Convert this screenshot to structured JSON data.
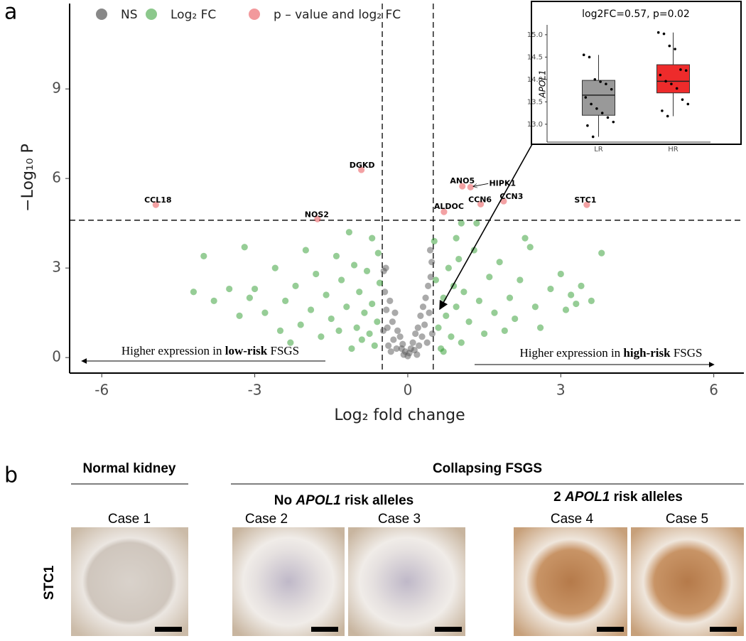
{
  "panel_labels": [
    "a",
    "b"
  ],
  "chart_data": [
    {
      "type": "scatter",
      "xlabel": "Log₂ fold change",
      "ylabel": "−Log₁₀ P",
      "xlim": [
        -6.63,
        6.59
      ],
      "ylim": [
        -0.52,
        11.86
      ],
      "xticks": [
        -6,
        -3,
        0,
        3,
        6
      ],
      "yticks": [
        0,
        3,
        6,
        9
      ],
      "legend": "top-left",
      "thresholds": {
        "x": [
          -0.5,
          0.5
        ],
        "y": 4.6
      },
      "series": [
        {
          "name": "NS",
          "color": "#555555",
          "x": [
            -0.45,
            -0.42,
            -0.4,
            -0.38,
            -0.35,
            -0.3,
            -0.28,
            -0.25,
            -0.22,
            -0.2,
            -0.15,
            -0.12,
            -0.1,
            -0.05,
            0,
            0.03,
            0.06,
            0.1,
            0.13,
            0.15,
            0.2,
            0.22,
            0.25,
            0.28,
            0.3,
            0.33,
            0.35,
            0.38,
            0.4,
            0.42,
            0.45,
            0.47,
            -0.47,
            -0.43,
            0.44,
            -0.33,
            0.18,
            -0.08,
            0.48,
            -0.48
          ],
          "y": [
            2.2,
            1.6,
            1.0,
            0.4,
            1.9,
            1.2,
            0.6,
            1.5,
            0.3,
            0.9,
            0.7,
            0.3,
            0.45,
            0.2,
            0.05,
            0.15,
            0.3,
            0.5,
            0.25,
            0.8,
            1.0,
            0.4,
            1.4,
            0.7,
            1.7,
            1.1,
            2.0,
            0.5,
            2.4,
            1.5,
            2.7,
            3.2,
            2.9,
            3.0,
            3.6,
            0.2,
            0.1,
            0.1,
            0.8,
            0.9
          ]
        },
        {
          "name": "Log₂ FC",
          "color": "#2e9b2e",
          "x": [
            -0.55,
            -0.6,
            -0.65,
            -0.7,
            -0.75,
            -0.8,
            -0.85,
            -0.9,
            -0.95,
            -1.0,
            -1.05,
            -1.1,
            -1.2,
            -1.3,
            -1.35,
            -1.4,
            -1.5,
            -1.6,
            -1.7,
            -1.8,
            -1.9,
            -2.0,
            -2.1,
            -2.2,
            -2.4,
            -2.5,
            -2.6,
            -2.8,
            -3.0,
            -3.1,
            -3.2,
            -3.3,
            -3.5,
            -3.8,
            -4.0,
            -4.2,
            -0.58,
            -1.15,
            -0.7,
            -2.3,
            0.55,
            0.6,
            0.65,
            0.7,
            0.75,
            0.8,
            0.85,
            0.9,
            0.95,
            1.0,
            1.05,
            1.1,
            1.2,
            1.3,
            1.4,
            1.5,
            1.6,
            1.7,
            1.8,
            1.9,
            2.0,
            2.1,
            2.2,
            2.4,
            2.5,
            2.6,
            2.8,
            3.0,
            3.1,
            3.2,
            3.3,
            3.4,
            3.8,
            1.05,
            0.95,
            0.52,
            1.35,
            2.3,
            3.6,
            0.7
          ],
          "y": [
            2.5,
            1.2,
            0.4,
            1.8,
            0.8,
            2.9,
            1.5,
            0.6,
            2.2,
            1.0,
            3.1,
            0.3,
            1.7,
            2.6,
            0.9,
            3.4,
            1.3,
            2.1,
            0.7,
            2.8,
            1.6,
            3.6,
            1.1,
            2.4,
            1.9,
            0.9,
            3.0,
            1.5,
            2.3,
            2.0,
            3.7,
            1.4,
            2.3,
            1.9,
            3.4,
            2.2,
            3.5,
            4.2,
            4.0,
            0.5,
            2.6,
            1.0,
            0.3,
            2.0,
            1.4,
            3.0,
            0.7,
            2.4,
            1.7,
            3.3,
            0.5,
            2.2,
            1.2,
            3.6,
            1.9,
            0.8,
            2.7,
            1.5,
            3.2,
            0.9,
            2.0,
            1.3,
            2.6,
            3.7,
            1.7,
            1.0,
            2.3,
            2.8,
            1.6,
            2.1,
            1.8,
            2.4,
            3.5,
            4.5,
            4.0,
            3.9,
            4.5,
            4.0,
            1.9,
            0.2
          ]
        },
        {
          "name": "p – value and log₂ FC",
          "color": "#e8454a",
          "x": [
            -4.94,
            -0.91,
            -1.77,
            1.07,
            1.23,
            1.43,
            0.71,
            1.88,
            3.51
          ],
          "y": [
            5.12,
            6.29,
            4.64,
            5.74,
            5.71,
            5.14,
            4.88,
            5.24,
            5.12
          ],
          "point_labels": [
            "CCL18",
            "DGKD",
            "NOS2",
            "ANO5",
            "HIPK1",
            "CCN6",
            "ALDOC",
            "CCN3",
            "STC1"
          ]
        }
      ],
      "inset_target": {
        "x": 0.57,
        "y": 1.62
      },
      "annotations": [
        {
          "parts": [
            "Higher expression in ",
            "low-risk",
            " FSGS"
          ]
        },
        {
          "parts": [
            "Higher expression in ",
            "high-risk",
            " FSGS"
          ]
        }
      ]
    },
    {
      "type": "box",
      "title": "log2FC=0.57, p=0.02",
      "ylabel": "APOL1",
      "ylim": [
        12.6,
        15.22
      ],
      "yticks": [
        {
          "value": 13,
          "label": "13.0"
        },
        {
          "value": 13.5,
          "label": "13.5"
        },
        {
          "value": 14,
          "label": "14.0"
        },
        {
          "value": 14.5,
          "label": "14.5"
        },
        {
          "value": 15,
          "label": "15.0"
        }
      ],
      "categories": [
        "LR",
        "HR"
      ],
      "boxes": [
        {
          "color": "#999999",
          "low": 12.72,
          "q1": 13.2,
          "median": 13.65,
          "q3": 13.98,
          "high": 14.55,
          "points": [
            14.55,
            14.5,
            14.0,
            13.95,
            13.9,
            13.78,
            13.6,
            13.45,
            13.35,
            13.25,
            13.15,
            13.05,
            12.97,
            12.72
          ]
        },
        {
          "color": "#ee2b2b",
          "low": 13.18,
          "q1": 13.7,
          "median": 13.96,
          "q3": 14.33,
          "high": 15.05,
          "points": [
            15.05,
            15.02,
            14.75,
            14.68,
            14.22,
            14.2,
            14.1,
            13.96,
            13.9,
            13.8,
            13.55,
            13.45,
            13.3,
            13.18
          ]
        }
      ]
    }
  ],
  "panel_b": {
    "groups": [
      "Normal kidney",
      "Collapsing FSGS"
    ],
    "subgroups": [
      {
        "parts": [
          "No ",
          "APOL1",
          " risk alleles"
        ]
      },
      {
        "parts": [
          "2 ",
          "APOL1",
          " risk alleles"
        ]
      }
    ],
    "cases": [
      "Case 1",
      "Case 2",
      "Case 3",
      "Case 4",
      "Case 5"
    ],
    "row_label": "STC1"
  }
}
